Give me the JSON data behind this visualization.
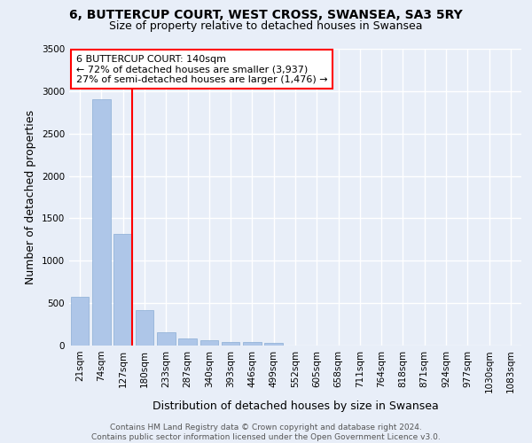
{
  "title_line1": "6, BUTTERCUP COURT, WEST CROSS, SWANSEA, SA3 5RY",
  "title_line2": "Size of property relative to detached houses in Swansea",
  "xlabel": "Distribution of detached houses by size in Swansea",
  "ylabel": "Number of detached properties",
  "footer1": "Contains HM Land Registry data © Crown copyright and database right 2024.",
  "footer2": "Contains public sector information licensed under the Open Government Licence v3.0.",
  "annotation_line1": "6 BUTTERCUP COURT: 140sqm",
  "annotation_line2": "← 72% of detached houses are smaller (3,937)",
  "annotation_line3": "27% of semi-detached houses are larger (1,476) →",
  "categories": [
    "21sqm",
    "74sqm",
    "127sqm",
    "180sqm",
    "233sqm",
    "287sqm",
    "340sqm",
    "393sqm",
    "446sqm",
    "499sqm",
    "552sqm",
    "605sqm",
    "658sqm",
    "711sqm",
    "764sqm",
    "818sqm",
    "871sqm",
    "924sqm",
    "977sqm",
    "1030sqm",
    "1083sqm"
  ],
  "values": [
    570,
    2900,
    1320,
    415,
    155,
    80,
    58,
    47,
    40,
    35,
    0,
    0,
    0,
    0,
    0,
    0,
    0,
    0,
    0,
    0,
    0
  ],
  "bar_color": "#aec6e8",
  "bar_edge_color": "#8aadd4",
  "vline_color": "red",
  "vline_x_idx": 2,
  "box_facecolor": "white",
  "box_edgecolor": "red",
  "ylim": [
    0,
    3500
  ],
  "yticks": [
    0,
    500,
    1000,
    1500,
    2000,
    2500,
    3000,
    3500
  ],
  "bg_color": "#e8eef8",
  "plot_bg_color": "#e8eef8",
  "grid_color": "white",
  "title_fontsize": 10,
  "subtitle_fontsize": 9,
  "ylabel_fontsize": 9,
  "xlabel_fontsize": 9,
  "tick_fontsize": 7.5,
  "annotation_fontsize": 8,
  "footer_fontsize": 6.5
}
